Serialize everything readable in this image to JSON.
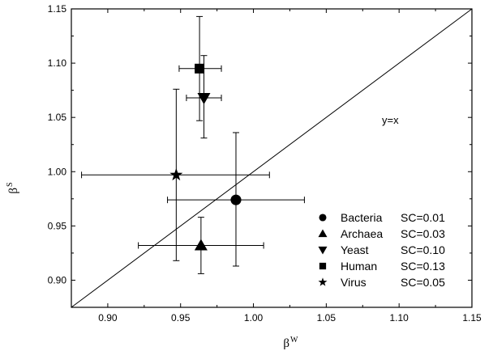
{
  "chart_data": {
    "type": "scatter",
    "title": "",
    "xlabel": {
      "base": "β",
      "sup": "W"
    },
    "ylabel": {
      "base": "β",
      "sup": "S"
    },
    "xlim": [
      0.875,
      1.15
    ],
    "ylim": [
      0.875,
      1.15
    ],
    "xticks": [
      0.9,
      0.95,
      1.0,
      1.05,
      1.1,
      1.15
    ],
    "xtick_labels": [
      "0.90",
      "0.95",
      "1.00",
      "1.05",
      "1.10",
      "1.15"
    ],
    "yticks": [
      0.9,
      0.95,
      1.0,
      1.05,
      1.1,
      1.15
    ],
    "ytick_labels": [
      "0.90",
      "0.95",
      "1.00",
      "1.05",
      "1.10",
      "1.15"
    ],
    "grid": false,
    "legend_position": "bottom-right",
    "reference_line": {
      "label": "y=x"
    },
    "series": [
      {
        "name": "Bacteria",
        "sc": "SC=0.01",
        "marker": "circle",
        "x": 0.988,
        "y": 0.974,
        "xerr": [
          0.941,
          1.035
        ],
        "yerr": [
          0.913,
          1.036
        ]
      },
      {
        "name": "Archaea",
        "sc": "SC=0.03",
        "marker": "triangle-up",
        "x": 0.964,
        "y": 0.932,
        "xerr": [
          0.921,
          1.007
        ],
        "yerr": [
          0.906,
          0.958
        ]
      },
      {
        "name": "Yeast",
        "sc": "SC=0.10",
        "marker": "triangle-down",
        "x": 0.966,
        "y": 1.068,
        "xerr": [
          0.954,
          0.978
        ],
        "yerr": [
          1.031,
          1.107
        ]
      },
      {
        "name": "Human",
        "sc": "SC=0.13",
        "marker": "square",
        "x": 0.963,
        "y": 1.095,
        "xerr": [
          0.949,
          0.978
        ],
        "yerr": [
          1.047,
          1.143
        ]
      },
      {
        "name": "Virus",
        "sc": "SC=0.05",
        "marker": "star",
        "x": 0.947,
        "y": 0.997,
        "xerr": [
          0.882,
          1.011
        ],
        "yerr": [
          0.918,
          1.076
        ]
      }
    ]
  }
}
